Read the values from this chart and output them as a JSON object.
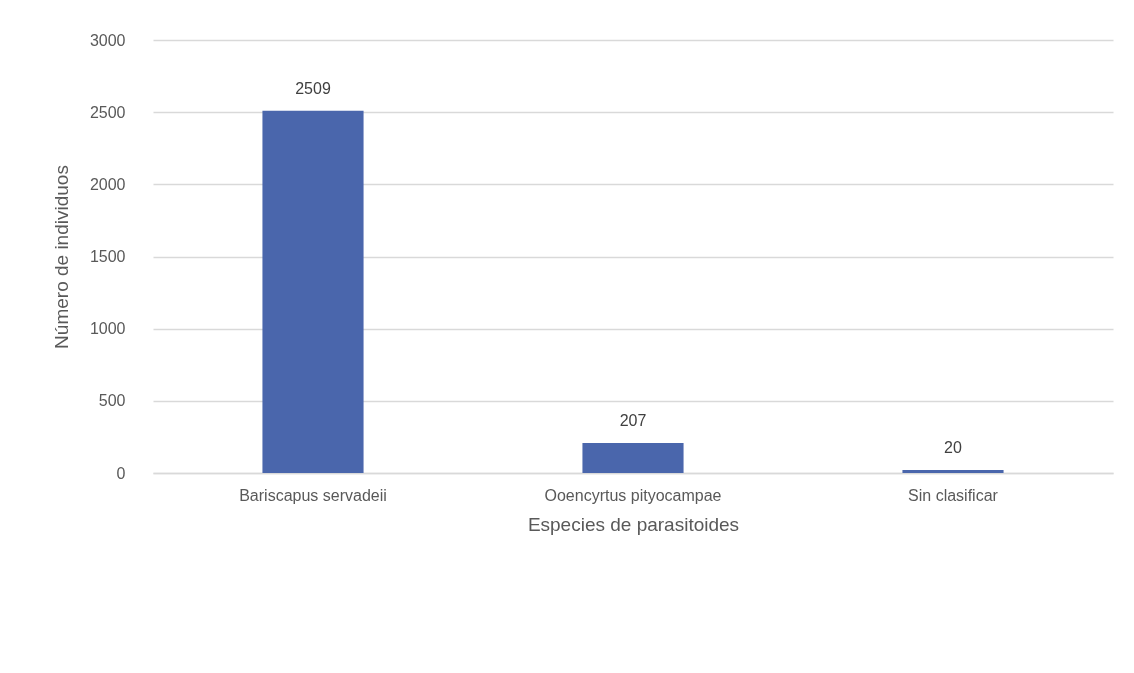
{
  "chart_data": {
    "type": "bar",
    "xlabel": "Especies de parasitoides",
    "ylabel": "Número de individuos",
    "categories": [
      "Bariscapus servadeii",
      "Ooencyrtus pityocampae",
      "Sin clasificar"
    ],
    "values": [
      2509,
      207,
      20
    ],
    "color": "#4a66ac",
    "ylim": [
      0,
      3000
    ],
    "yticks": [
      0,
      500,
      1000,
      1500,
      2000,
      2500,
      3000
    ],
    "grid": "y",
    "data_labels": true
  }
}
